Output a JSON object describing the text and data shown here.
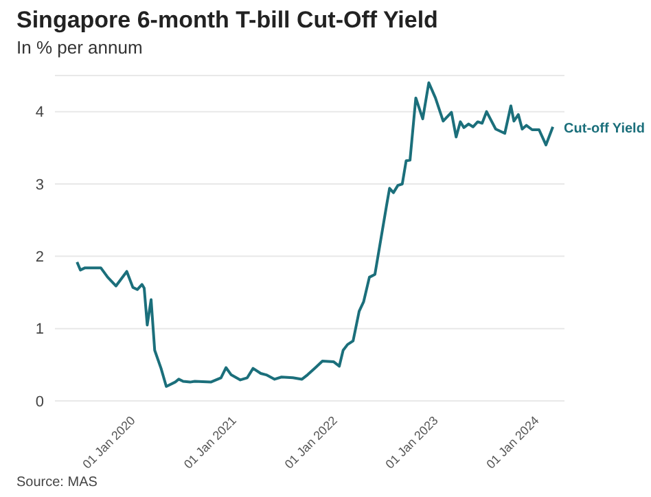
{
  "chart_data": {
    "type": "line",
    "title": "Singapore 6-month T-bill Cut-Off Yield",
    "subtitle": "In % per annum",
    "annotations": [
      "Source: MAS"
    ],
    "xlim": [
      "2019-03-28",
      "2024-04-14"
    ],
    "xticks": [
      {
        "value": "2020-01-01",
        "label": "01 Jan 2020"
      },
      {
        "value": "2021-01-01",
        "label": "01 Jan 2021"
      },
      {
        "value": "2022-01-01",
        "label": "01 Jan 2022"
      },
      {
        "value": "2023-01-01",
        "label": "01 Jan 2023"
      },
      {
        "value": "2024-01-01",
        "label": "01 Jan 2024"
      }
    ],
    "ylim": [
      0,
      4.5
    ],
    "yticks": [
      0,
      1,
      2,
      3,
      4
    ],
    "grid": "y",
    "legend": false,
    "marker": "none",
    "line_style": "solid",
    "x": [
      "2019-06-16",
      "2019-06-28",
      "2019-07-15",
      "2019-09-10",
      "2019-10-05",
      "2019-11-04",
      "2019-12-13",
      "2020-01-04",
      "2020-01-20",
      "2020-02-06",
      "2020-02-14",
      "2020-02-25",
      "2020-03-10",
      "2020-03-23",
      "2020-04-15",
      "2020-05-04",
      "2020-06-05",
      "2020-06-18",
      "2020-07-04",
      "2020-07-29",
      "2020-08-15",
      "2020-10-12",
      "2020-11-18",
      "2020-12-06",
      "2020-12-25",
      "2021-01-27",
      "2021-02-21",
      "2021-03-14",
      "2021-04-11",
      "2021-05-01",
      "2021-05-31",
      "2021-06-25",
      "2021-08-05",
      "2021-09-07",
      "2021-09-27",
      "2021-10-26",
      "2021-11-20",
      "2021-12-31",
      "2022-01-20",
      "2022-02-03",
      "2022-02-19",
      "2022-03-11",
      "2022-04-02",
      "2022-04-18",
      "2022-05-09",
      "2022-05-29",
      "2022-07-10",
      "2022-07-21",
      "2022-08-04",
      "2022-08-20",
      "2022-09-05",
      "2022-09-19",
      "2022-10-03",
      "2022-10-24",
      "2022-11-18",
      "2022-12-10",
      "2023-01-03",
      "2023-01-31",
      "2023-03-02",
      "2023-03-19",
      "2023-04-03",
      "2023-04-16",
      "2023-05-03",
      "2023-05-19",
      "2023-06-05",
      "2023-06-21",
      "2023-07-07",
      "2023-08-09",
      "2023-09-11",
      "2023-10-03",
      "2023-10-14",
      "2023-10-30",
      "2023-11-13",
      "2023-11-28",
      "2023-12-19",
      "2024-01-13",
      "2024-02-07",
      "2024-03-03"
    ],
    "series": [
      {
        "name": "Cut-off Yield",
        "color": "#1b6f7b",
        "values": [
          1.92,
          1.81,
          1.84,
          1.84,
          1.71,
          1.59,
          1.79,
          1.57,
          1.54,
          1.61,
          1.56,
          1.05,
          1.4,
          0.7,
          0.45,
          0.2,
          0.26,
          0.3,
          0.27,
          0.26,
          0.27,
          0.26,
          0.32,
          0.46,
          0.36,
          0.29,
          0.32,
          0.45,
          0.38,
          0.36,
          0.3,
          0.33,
          0.32,
          0.3,
          0.36,
          0.46,
          0.55,
          0.54,
          0.48,
          0.7,
          0.78,
          0.83,
          1.24,
          1.37,
          1.71,
          1.75,
          2.7,
          2.94,
          2.88,
          2.98,
          3.0,
          3.32,
          3.33,
          4.19,
          3.9,
          4.4,
          4.19,
          3.87,
          3.99,
          3.65,
          3.86,
          3.78,
          3.83,
          3.79,
          3.86,
          3.84,
          4.0,
          3.76,
          3.7,
          4.08,
          3.87,
          3.96,
          3.76,
          3.81,
          3.75,
          3.75,
          3.54,
          3.79
        ]
      }
    ]
  }
}
